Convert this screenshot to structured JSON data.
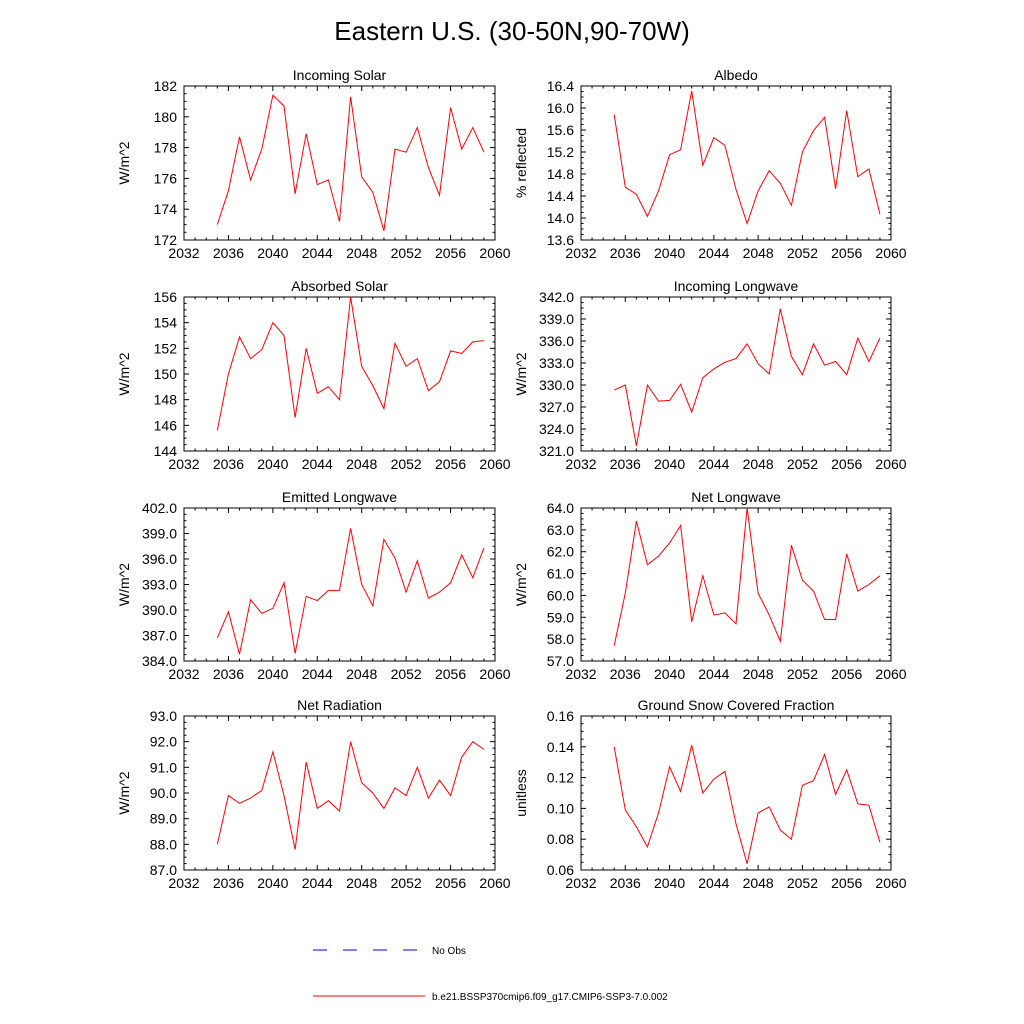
{
  "title": "Eastern U.S. (30-50N,90-70W)",
  "colors": {
    "model": "#ff0000",
    "obs": "#0000ff",
    "axis": "#000000"
  },
  "legend": {
    "obs_label": "No Obs",
    "model_label": "b.e21.BSSP370cmip6.f09_g17.CMIP6-SSP3-7.0.002"
  },
  "chart_data": [
    {
      "type": "line",
      "title": "Incoming Solar",
      "ylabel": "W/m^2",
      "xlim": [
        2032,
        2060
      ],
      "ylim": [
        172,
        182
      ],
      "x_ticks": [
        2032,
        2036,
        2040,
        2044,
        2048,
        2052,
        2056,
        2060
      ],
      "y_ticks": [
        172,
        174,
        176,
        178,
        180,
        182
      ],
      "y_tick_labels": [
        "172",
        "174",
        "176",
        "178",
        "180",
        "182"
      ],
      "series": [
        {
          "x": [
            2035,
            2036,
            2037,
            2038,
            2039,
            2040,
            2041,
            2042,
            2043,
            2044,
            2045,
            2046,
            2047,
            2048,
            2049,
            2050,
            2051,
            2052,
            2053,
            2054,
            2055,
            2056,
            2057,
            2058,
            2059
          ],
          "values": [
            173.0,
            175.2,
            178.7,
            175.9,
            177.9,
            181.4,
            180.7,
            175.0,
            178.9,
            175.6,
            175.9,
            173.2,
            181.3,
            176.1,
            175.1,
            172.6,
            177.9,
            177.7,
            179.3,
            176.7,
            174.9,
            180.6,
            177.9,
            179.3,
            177.7
          ]
        }
      ]
    },
    {
      "type": "line",
      "title": "Albedo",
      "ylabel": "% reflected",
      "xlim": [
        2032,
        2060
      ],
      "ylim": [
        13.6,
        16.4
      ],
      "x_ticks": [
        2032,
        2036,
        2040,
        2044,
        2048,
        2052,
        2056,
        2060
      ],
      "y_ticks": [
        13.6,
        14.0,
        14.4,
        14.8,
        15.2,
        15.6,
        16.0,
        16.4
      ],
      "y_tick_labels": [
        "13.6",
        "14.0",
        "14.4",
        "14.8",
        "15.2",
        "15.6",
        "16.0",
        "16.4"
      ],
      "series": [
        {
          "x": [
            2035,
            2036,
            2037,
            2038,
            2039,
            2040,
            2041,
            2042,
            2043,
            2044,
            2045,
            2046,
            2047,
            2048,
            2049,
            2050,
            2051,
            2052,
            2053,
            2054,
            2055,
            2056,
            2057,
            2058,
            2059
          ],
          "values": [
            15.88,
            14.56,
            14.43,
            14.03,
            14.49,
            15.15,
            15.24,
            16.31,
            14.96,
            15.46,
            15.32,
            14.52,
            13.9,
            14.49,
            14.86,
            14.63,
            14.23,
            15.2,
            15.59,
            15.83,
            14.53,
            15.95,
            14.75,
            14.89,
            14.07
          ]
        }
      ]
    },
    {
      "type": "line",
      "title": "Absorbed Solar",
      "ylabel": "W/m^2",
      "xlim": [
        2032,
        2060
      ],
      "ylim": [
        144,
        156
      ],
      "x_ticks": [
        2032,
        2036,
        2040,
        2044,
        2048,
        2052,
        2056,
        2060
      ],
      "y_ticks": [
        144,
        146,
        148,
        150,
        152,
        154,
        156
      ],
      "y_tick_labels": [
        "144",
        "146",
        "148",
        "150",
        "152",
        "154",
        "156"
      ],
      "series": [
        {
          "x": [
            2035,
            2036,
            2037,
            2038,
            2039,
            2040,
            2041,
            2042,
            2043,
            2044,
            2045,
            2046,
            2047,
            2048,
            2049,
            2050,
            2051,
            2052,
            2053,
            2054,
            2055,
            2056,
            2057,
            2058,
            2059
          ],
          "values": [
            145.6,
            150.0,
            152.9,
            151.2,
            151.9,
            154.0,
            153.0,
            146.6,
            152.0,
            148.5,
            149.0,
            148.0,
            156.0,
            150.6,
            149.1,
            147.3,
            152.4,
            150.6,
            151.2,
            148.7,
            149.4,
            151.8,
            151.6,
            152.5,
            152.6
          ]
        }
      ]
    },
    {
      "type": "line",
      "title": "Incoming Longwave",
      "ylabel": "W/m^2",
      "xlim": [
        2032,
        2060
      ],
      "ylim": [
        321,
        342
      ],
      "x_ticks": [
        2032,
        2036,
        2040,
        2044,
        2048,
        2052,
        2056,
        2060
      ],
      "y_ticks": [
        321,
        324,
        327,
        330,
        333,
        336,
        339,
        342
      ],
      "y_tick_labels": [
        "321.0",
        "324.0",
        "327.0",
        "330.0",
        "333.0",
        "336.0",
        "339.0",
        "342.0"
      ],
      "series": [
        {
          "x": [
            2035,
            2036,
            2037,
            2038,
            2039,
            2040,
            2041,
            2042,
            2043,
            2044,
            2045,
            2046,
            2047,
            2048,
            2049,
            2050,
            2051,
            2052,
            2053,
            2054,
            2055,
            2056,
            2057,
            2058,
            2059
          ],
          "values": [
            329.3,
            330.0,
            321.7,
            330.0,
            327.8,
            327.9,
            330.1,
            326.3,
            331.0,
            332.2,
            333.1,
            333.6,
            335.6,
            332.9,
            331.5,
            340.4,
            333.9,
            331.4,
            335.6,
            332.7,
            333.2,
            331.4,
            336.4,
            333.2,
            336.4
          ]
        }
      ]
    },
    {
      "type": "line",
      "title": "Emitted Longwave",
      "ylabel": "W/m^2",
      "xlim": [
        2032,
        2060
      ],
      "ylim": [
        384,
        402
      ],
      "x_ticks": [
        2032,
        2036,
        2040,
        2044,
        2048,
        2052,
        2056,
        2060
      ],
      "y_ticks": [
        384,
        387,
        390,
        393,
        396,
        399,
        402
      ],
      "y_tick_labels": [
        "384.0",
        "387.0",
        "390.0",
        "393.0",
        "396.0",
        "399.0",
        "402.0"
      ],
      "series": [
        {
          "x": [
            2035,
            2036,
            2037,
            2038,
            2039,
            2040,
            2041,
            2042,
            2043,
            2044,
            2045,
            2046,
            2047,
            2048,
            2049,
            2050,
            2051,
            2052,
            2053,
            2054,
            2055,
            2056,
            2057,
            2058,
            2059
          ],
          "values": [
            386.7,
            389.8,
            384.8,
            391.2,
            389.6,
            390.2,
            393.2,
            384.9,
            391.6,
            391.1,
            392.3,
            392.3,
            399.6,
            393.0,
            390.5,
            398.3,
            396.1,
            392.1,
            395.8,
            391.4,
            392.1,
            393.2,
            396.5,
            393.8,
            397.3
          ]
        }
      ]
    },
    {
      "type": "line",
      "title": "Net Longwave",
      "ylabel": "W/m^2",
      "xlim": [
        2032,
        2060
      ],
      "ylim": [
        57,
        64
      ],
      "x_ticks": [
        2032,
        2036,
        2040,
        2044,
        2048,
        2052,
        2056,
        2060
      ],
      "y_ticks": [
        57,
        58,
        59,
        60,
        61,
        62,
        63,
        64
      ],
      "y_tick_labels": [
        "57.0",
        "58.0",
        "59.0",
        "60.0",
        "61.0",
        "62.0",
        "63.0",
        "64.0"
      ],
      "series": [
        {
          "x": [
            2035,
            2036,
            2037,
            2038,
            2039,
            2040,
            2041,
            2042,
            2043,
            2044,
            2045,
            2046,
            2047,
            2048,
            2049,
            2050,
            2051,
            2052,
            2053,
            2054,
            2055,
            2056,
            2057,
            2058,
            2059
          ],
          "values": [
            57.7,
            60.1,
            63.4,
            61.4,
            61.8,
            62.4,
            63.2,
            58.8,
            60.9,
            59.1,
            59.2,
            58.7,
            64.0,
            60.1,
            59.1,
            57.9,
            62.3,
            60.7,
            60.2,
            58.9,
            58.9,
            61.9,
            60.2,
            60.5,
            60.9
          ]
        }
      ]
    },
    {
      "type": "line",
      "title": "Net Radiation",
      "ylabel": "W/m^2",
      "xlim": [
        2032,
        2060
      ],
      "ylim": [
        87,
        93
      ],
      "x_ticks": [
        2032,
        2036,
        2040,
        2044,
        2048,
        2052,
        2056,
        2060
      ],
      "y_ticks": [
        87,
        88,
        89,
        90,
        91,
        92,
        93
      ],
      "y_tick_labels": [
        "87.0",
        "88.0",
        "89.0",
        "90.0",
        "91.0",
        "92.0",
        "93.0"
      ],
      "series": [
        {
          "x": [
            2035,
            2036,
            2037,
            2038,
            2039,
            2040,
            2041,
            2042,
            2043,
            2044,
            2045,
            2046,
            2047,
            2048,
            2049,
            2050,
            2051,
            2052,
            2053,
            2054,
            2055,
            2056,
            2057,
            2058,
            2059
          ],
          "values": [
            88.0,
            89.9,
            89.6,
            89.8,
            90.1,
            91.6,
            89.9,
            87.8,
            91.2,
            89.4,
            89.7,
            89.3,
            92.0,
            90.4,
            90.0,
            89.4,
            90.2,
            89.9,
            91.0,
            89.8,
            90.5,
            89.9,
            91.4,
            92.0,
            91.7
          ]
        }
      ]
    },
    {
      "type": "line",
      "title": "Ground Snow Covered Fraction",
      "ylabel": "unitless",
      "xlim": [
        2032,
        2060
      ],
      "ylim": [
        0.06,
        0.16
      ],
      "x_ticks": [
        2032,
        2036,
        2040,
        2044,
        2048,
        2052,
        2056,
        2060
      ],
      "y_ticks": [
        0.06,
        0.08,
        0.1,
        0.12,
        0.14,
        0.16
      ],
      "y_tick_labels": [
        "0.06",
        "0.08",
        "0.10",
        "0.12",
        "0.14",
        "0.16"
      ],
      "series": [
        {
          "x": [
            2035,
            2036,
            2037,
            2038,
            2039,
            2040,
            2041,
            2042,
            2043,
            2044,
            2045,
            2046,
            2047,
            2048,
            2049,
            2050,
            2051,
            2052,
            2053,
            2054,
            2055,
            2056,
            2057,
            2058,
            2059
          ],
          "values": [
            0.14,
            0.099,
            0.088,
            0.075,
            0.097,
            0.127,
            0.111,
            0.141,
            0.11,
            0.119,
            0.124,
            0.09,
            0.064,
            0.097,
            0.101,
            0.086,
            0.08,
            0.115,
            0.118,
            0.135,
            0.109,
            0.125,
            0.103,
            0.102,
            0.078
          ]
        }
      ]
    }
  ]
}
